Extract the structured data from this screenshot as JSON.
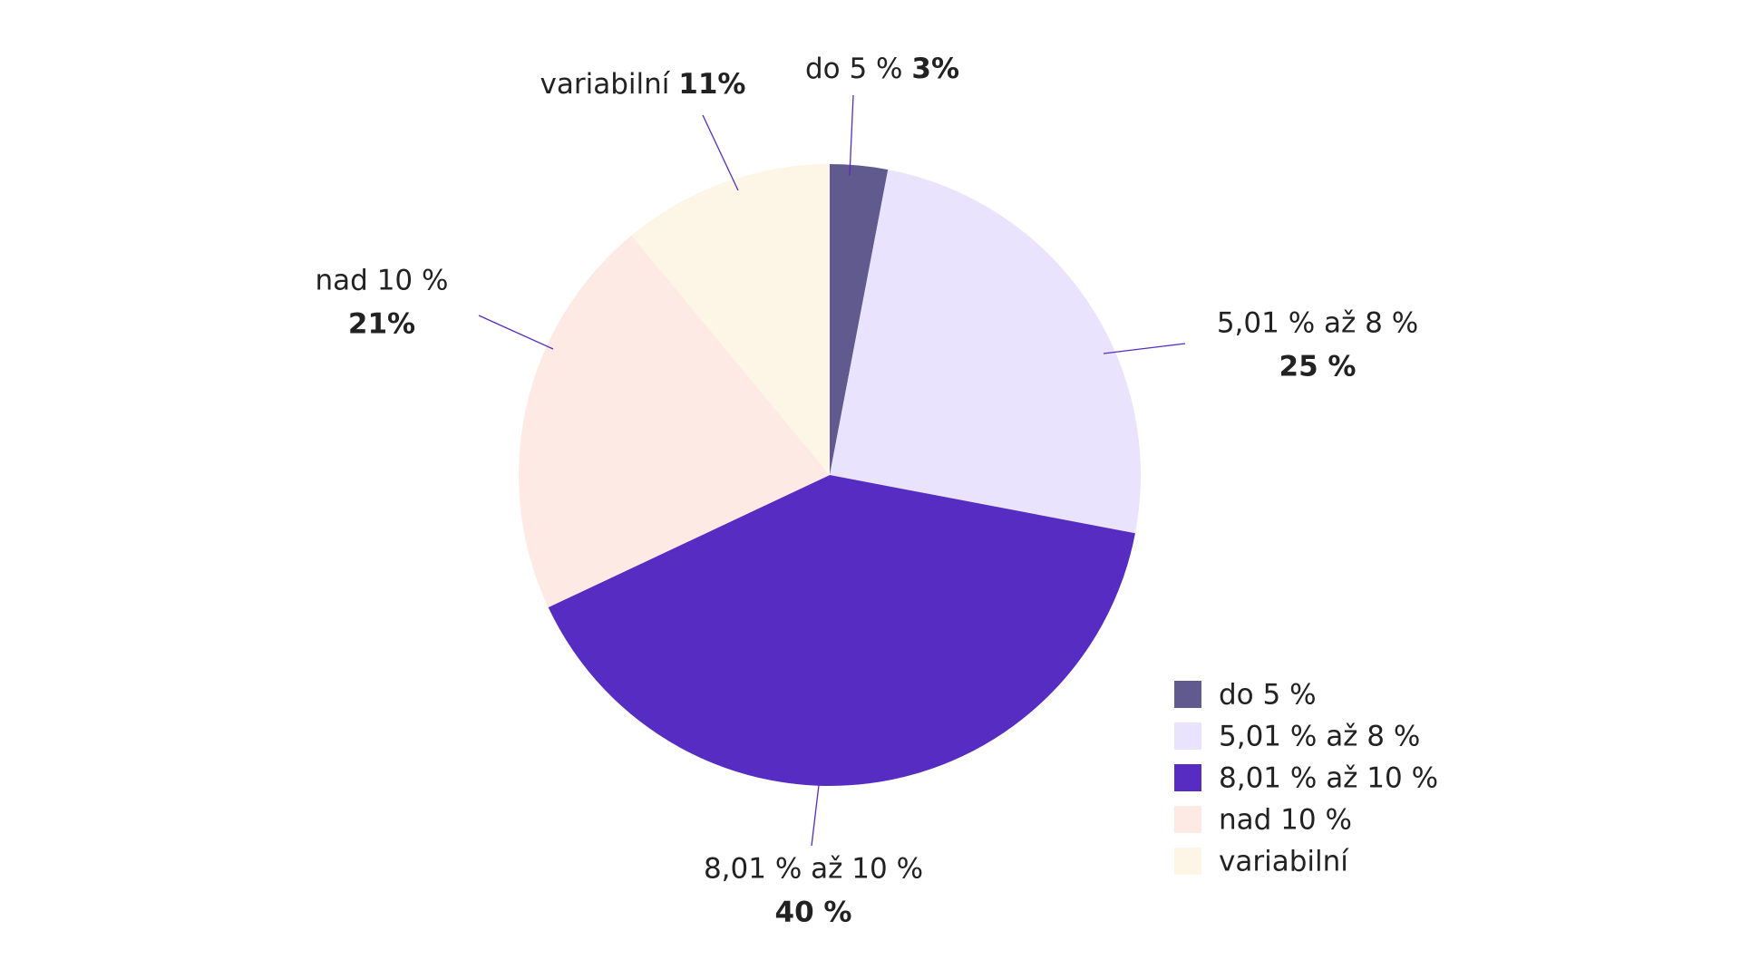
{
  "chart_data": {
    "type": "pie",
    "categories": [
      "do 5 %",
      "5,01 % až 8 %",
      "8,01 % až 10 %",
      "nad 10 %",
      "variabilní"
    ],
    "values": [
      3,
      25,
      40,
      21,
      11
    ],
    "value_labels": [
      "3%",
      "25 %",
      "40 %",
      "21%",
      "11%"
    ],
    "colors": [
      "#605a8e",
      "#e9e3fd",
      "#562cc2",
      "#fdeae5",
      "#fdf6e6"
    ],
    "legend": "bottom-right"
  }
}
